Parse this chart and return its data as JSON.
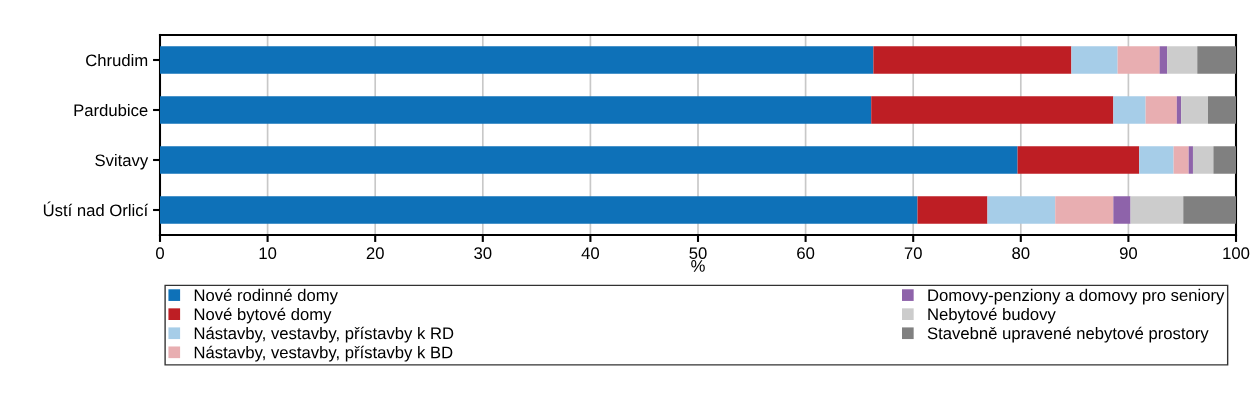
{
  "chart_data": {
    "type": "bar",
    "orientation": "horizontal",
    "stacked": true,
    "xlabel": "%",
    "categories": [
      "Chrudim",
      "Pardubice",
      "Svitavy",
      "Ústí nad Orlicí"
    ],
    "series": [
      {
        "name": "Nové rodinné domy",
        "color": "#0e71b8",
        "values": [
          66.3,
          66.1,
          79.7,
          70.4
        ]
      },
      {
        "name": "Nové bytové domy",
        "color": "#be1e24",
        "values": [
          18.4,
          22.5,
          11.3,
          6.5
        ]
      },
      {
        "name": "Nástavby, vestavby, přístavby k RD",
        "color": "#a6cde8",
        "values": [
          4.3,
          3.0,
          3.2,
          6.3
        ]
      },
      {
        "name": "Nástavby, vestavby, přístavby k BD",
        "color": "#e8aeb1",
        "values": [
          3.9,
          2.9,
          1.4,
          5.4
        ]
      },
      {
        "name": "Domovy-penziony a domovy pro seniory",
        "color": "#8e63aa",
        "values": [
          0.7,
          0.4,
          0.4,
          1.6
        ]
      },
      {
        "name": "Nebytové budovy",
        "color": "#cccccc",
        "values": [
          2.8,
          2.5,
          1.9,
          4.9
        ]
      },
      {
        "name": "Stavebně upravené nebytové prostory",
        "color": "#808080",
        "values": [
          3.6,
          2.6,
          2.1,
          4.9
        ]
      }
    ],
    "xlim": [
      0,
      100
    ],
    "xticks": [
      0,
      10,
      20,
      30,
      40,
      50,
      60,
      70,
      80,
      90,
      100
    ],
    "grid": "x",
    "legend": "bottom"
  }
}
